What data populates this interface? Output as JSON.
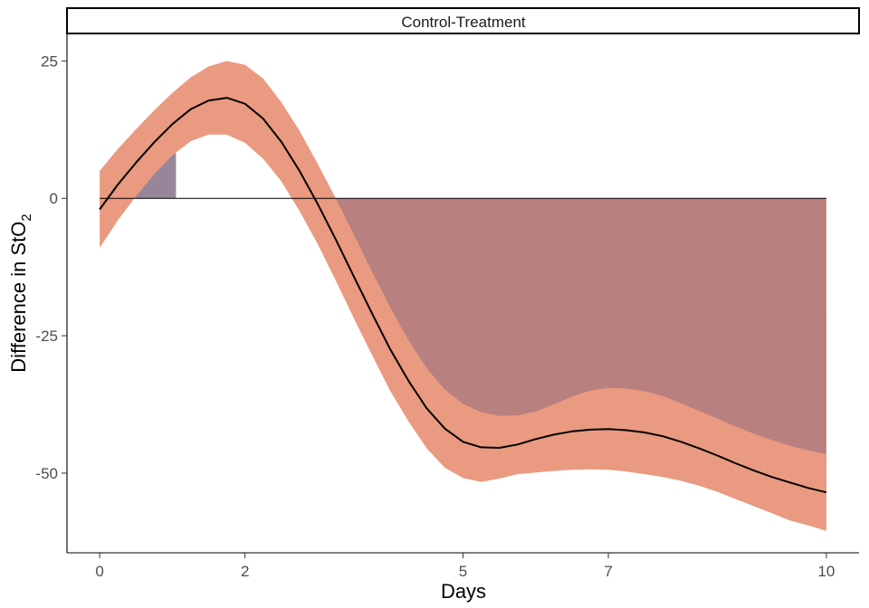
{
  "chart_data": {
    "type": "line",
    "facet_label": "Control-Treatment",
    "xlabel": "Days",
    "ylabel_main": "Difference in StO",
    "ylabel_subscript": "2",
    "xlim": [
      -0.45,
      10.45
    ],
    "ylim": [
      -64.5,
      30
    ],
    "x_ticks": [
      0,
      2,
      5,
      7,
      10
    ],
    "x_tick_labels": [
      "0",
      "2",
      "5",
      "7",
      "10"
    ],
    "y_ticks": [
      25,
      0,
      -25,
      -50
    ],
    "y_tick_labels": [
      "25",
      "0",
      "-25",
      "-50"
    ],
    "reference_line": 0,
    "grid": false,
    "series": [
      {
        "role": "estimate",
        "color": "#000000",
        "x": [
          0,
          0.25,
          0.5,
          0.75,
          1,
          1.25,
          1.5,
          1.75,
          2,
          2.25,
          2.5,
          2.75,
          3,
          3.25,
          3.5,
          3.75,
          4,
          4.25,
          4.5,
          4.75,
          5,
          5.25,
          5.5,
          5.75,
          6,
          6.25,
          6.5,
          6.75,
          7,
          7.25,
          7.5,
          7.75,
          8,
          8.25,
          8.5,
          8.75,
          9,
          9.25,
          9.5,
          9.75,
          10
        ],
        "y": [
          -2,
          2.5,
          6.5,
          10.2,
          13.5,
          16.2,
          17.8,
          18.3,
          17.2,
          14.5,
          10.3,
          5,
          -1,
          -7.5,
          -14.3,
          -21,
          -27.5,
          -33.2,
          -38.2,
          -41.9,
          -44.3,
          -45.3,
          -45.4,
          -44.8,
          -43.8,
          -43,
          -42.4,
          -42.1,
          -42,
          -42.2,
          -42.6,
          -43.3,
          -44.3,
          -45.5,
          -46.8,
          -48.2,
          -49.5,
          -50.7,
          -51.7,
          -52.7,
          -53.5
        ]
      },
      {
        "role": "confidence_band",
        "color": "#ea9a80",
        "x": [
          0,
          0.25,
          0.5,
          0.75,
          1,
          1.25,
          1.5,
          1.75,
          2,
          2.25,
          2.5,
          2.75,
          3,
          3.25,
          3.5,
          3.75,
          4,
          4.25,
          4.5,
          4.75,
          5,
          5.25,
          5.5,
          5.75,
          6,
          6.25,
          6.5,
          6.75,
          7,
          7.25,
          7.5,
          7.75,
          8,
          8.25,
          8.5,
          8.75,
          9,
          9.25,
          9.5,
          9.75,
          10
        ],
        "upper": [
          5,
          9,
          12.6,
          16,
          19.2,
          22,
          24,
          25,
          24.3,
          21.8,
          17.5,
          12.3,
          6.3,
          0,
          -6.7,
          -13.4,
          -19.9,
          -25.8,
          -30.9,
          -34.8,
          -37.4,
          -38.9,
          -39.6,
          -39.5,
          -38.8,
          -37.5,
          -36.1,
          -35,
          -34.5,
          -34.6,
          -35.1,
          -36,
          -37.3,
          -38.7,
          -40.1,
          -41.5,
          -42.8,
          -44,
          -45,
          -45.9,
          -46.5
        ],
        "lower": [
          -9,
          -4,
          0.4,
          4.4,
          7.8,
          10.4,
          11.6,
          11.6,
          10.1,
          7.2,
          3.1,
          -2.3,
          -8.3,
          -15,
          -21.9,
          -28.6,
          -35.1,
          -40.6,
          -45.5,
          -49,
          -50.9,
          -51.6,
          -51,
          -50.2,
          -49.9,
          -49.6,
          -49.4,
          -49.3,
          -49.4,
          -49.7,
          -50.2,
          -50.7,
          -51.4,
          -52.3,
          -53.4,
          -54.7,
          -56,
          -57.3,
          -58.6,
          -59.5,
          -60.5
        ]
      }
    ],
    "fills": [
      {
        "role": "area_above_zero",
        "color": "#978699",
        "from": 0,
        "to": 1.05
      },
      {
        "role": "area_below_zero",
        "color": "#b98080",
        "from": 3.05,
        "to": 10
      }
    ]
  }
}
